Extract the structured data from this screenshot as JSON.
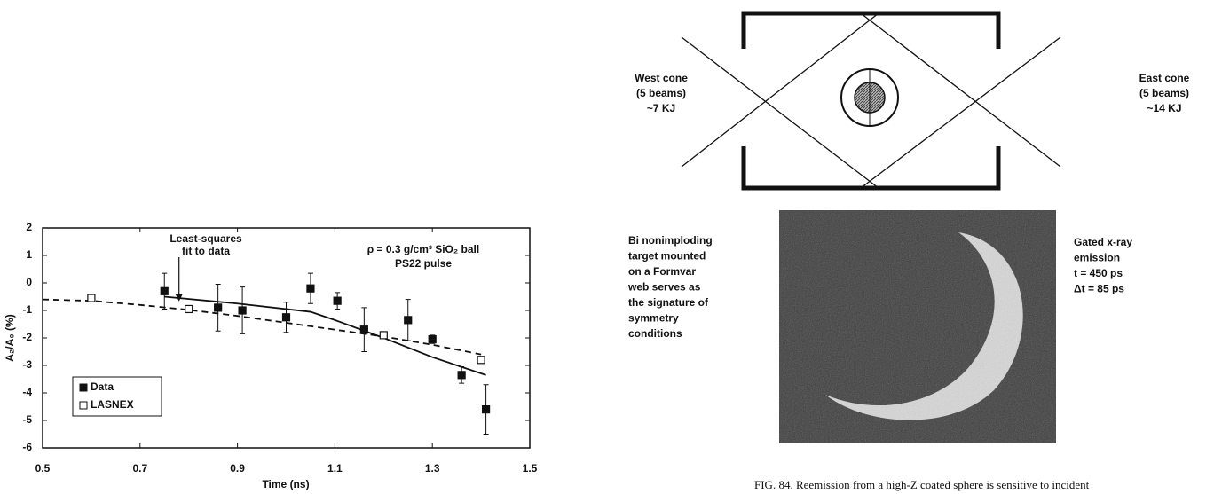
{
  "chart_data": {
    "type": "scatter",
    "xlabel": "Time (ns)",
    "ylabel": "A₂/A₀ (%)",
    "xlim": [
      0.5,
      1.5
    ],
    "xticks": [
      0.5,
      0.7,
      0.9,
      1.1,
      1.3,
      1.5
    ],
    "ylim": [
      -6,
      2
    ],
    "yticks": [
      -6,
      -5,
      -4,
      -3,
      -2,
      -1,
      0,
      1,
      2
    ],
    "legend": "lower left",
    "series": [
      {
        "name": "Data",
        "color": "#111111",
        "marker": "filled",
        "x": [
          0.75,
          0.86,
          0.91,
          1.0,
          1.05,
          1.105,
          1.16,
          1.25,
          1.3,
          1.36,
          1.41
        ],
        "values": [
          -0.3,
          -0.9,
          -1.0,
          -1.25,
          -0.2,
          -0.65,
          -1.7,
          -1.35,
          -2.05,
          -3.35,
          -4.6
        ],
        "errors": [
          0.65,
          0.85,
          0.85,
          0.55,
          0.55,
          0.3,
          0.8,
          0.75,
          0.15,
          0.3,
          0.9
        ]
      },
      {
        "name": "LASNEX",
        "color": "#111111",
        "marker": "open",
        "x": [
          0.6,
          0.8,
          1.2,
          1.4
        ],
        "values": [
          -0.55,
          -0.95,
          -1.9,
          -2.8
        ]
      }
    ],
    "fit_line": {
      "x": [
        0.75,
        0.9,
        1.05,
        1.1,
        1.2,
        1.3,
        1.41
      ],
      "values": [
        -0.5,
        -0.75,
        -1.05,
        -1.35,
        -2.0,
        -2.7,
        -3.35
      ]
    },
    "lasnex_curve": {
      "x": [
        0.5,
        0.6,
        0.7,
        0.8,
        0.9,
        1.0,
        1.1,
        1.2,
        1.3,
        1.4
      ],
      "values": [
        -0.6,
        -0.65,
        -0.8,
        -0.98,
        -1.2,
        -1.45,
        -1.7,
        -1.95,
        -2.25,
        -2.6
      ]
    },
    "annotations": [
      {
        "lines": [
          "Least-squares",
          "fit to data"
        ],
        "x": 0.78,
        "y": -0.8
      },
      {
        "lines": [
          "ρ = 0.3 g/cm³ SiO₂ ball",
          "PS22 pulse"
        ]
      }
    ]
  },
  "diagram": {
    "west_label": [
      "West cone",
      "(5 beams)",
      "~7 KJ"
    ],
    "east_label": [
      "East cone",
      "(5 beams)",
      "~14 KJ"
    ],
    "left_note": [
      "Bi nonimploding",
      "target mounted",
      "on a Formvar",
      "web serves as",
      "the signature of",
      "symmetry",
      "conditions"
    ],
    "right_note": [
      "Gated x-ray",
      "emission",
      "t = 450 ps",
      "Δt = 85 ps"
    ]
  },
  "caption": "FIG. 84. Reemission from a high-Z coated sphere is sensitive to incident"
}
